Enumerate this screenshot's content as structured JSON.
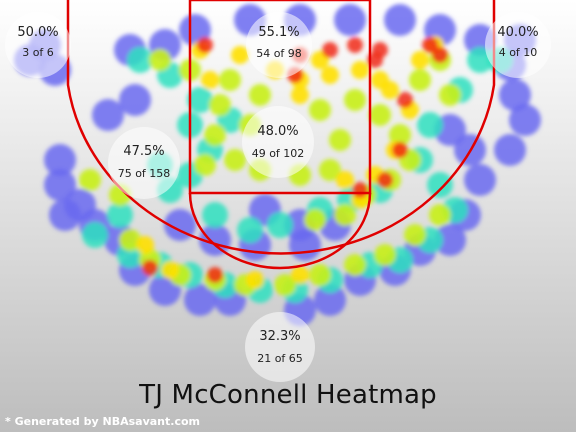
{
  "chart_data": {
    "type": "heatmap",
    "title": "TJ McConnell Heatmap",
    "credit": "* Generated by NBAsavant.com",
    "colors": {
      "background_top": "#ffffff",
      "background_bottom": "#bdbdbd",
      "court_lines": "#e00000",
      "heat_low": "#6a6af0",
      "heat_mid_low": "#2fe0c0",
      "heat_mid": "#c8f01a",
      "heat_high": "#ffe000",
      "heat_max": "#f02a14"
    },
    "zones": [
      {
        "id": "left-corner-three",
        "pct": "50.0%",
        "made_of_attempts": "3 of 6"
      },
      {
        "id": "restricted-area",
        "pct": "55.1%",
        "made_of_attempts": "54 of 98"
      },
      {
        "id": "right-corner-three",
        "pct": "40.0%",
        "made_of_attempts": "4 of 10"
      },
      {
        "id": "left-midrange",
        "pct": "47.5%",
        "made_of_attempts": "75 of 158"
      },
      {
        "id": "paint-non-ra",
        "pct": "48.0%",
        "made_of_attempts": "49 of 102"
      },
      {
        "id": "above-break-three",
        "pct": "32.3%",
        "made_of_attempts": "21 of 65"
      }
    ]
  }
}
